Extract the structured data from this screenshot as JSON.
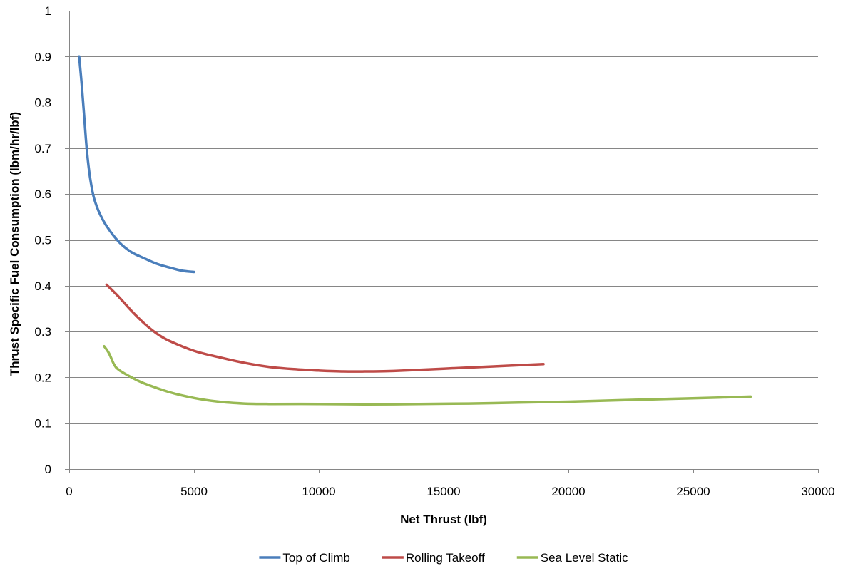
{
  "chart_data": {
    "type": "line",
    "title": "",
    "xlabel": "Net Thrust (lbf)",
    "ylabel": "Thrust Specific Fuel Consumption (lbm/hr/lbf)",
    "xlim": [
      0,
      30000
    ],
    "ylim": [
      0,
      1
    ],
    "x_ticks": [
      0,
      5000,
      10000,
      15000,
      20000,
      25000,
      30000
    ],
    "x_tick_labels": [
      "0",
      "5000",
      "10000",
      "15000",
      "20000",
      "25000",
      "30000"
    ],
    "y_ticks": [
      0,
      0.1,
      0.2,
      0.3,
      0.4,
      0.5,
      0.6,
      0.7,
      0.8,
      0.9,
      1
    ],
    "y_tick_labels": [
      "0",
      "0.1",
      "0.2",
      "0.3",
      "0.4",
      "0.5",
      "0.6",
      "0.7",
      "0.8",
      "0.9",
      "1"
    ],
    "grid": "horizontal",
    "legend_position": "bottom",
    "series": [
      {
        "name": "Top of Climb",
        "color": "#4a7ebb",
        "x": [
          400,
          500,
          600,
          700,
          800,
          900,
          1000,
          1200,
          1500,
          2000,
          2500,
          3000,
          3500,
          4000,
          4500,
          5000
        ],
        "y": [
          0.9,
          0.84,
          0.77,
          0.7,
          0.65,
          0.615,
          0.59,
          0.56,
          0.53,
          0.495,
          0.473,
          0.46,
          0.448,
          0.44,
          0.433,
          0.43
        ]
      },
      {
        "name": "Rolling Takeoff",
        "color": "#be4b48",
        "x": [
          1500,
          2000,
          2500,
          3000,
          3500,
          4000,
          5000,
          6000,
          7000,
          8000,
          9000,
          10000,
          11000,
          12000,
          13000,
          15000,
          17000,
          19000
        ],
        "y": [
          0.402,
          0.375,
          0.345,
          0.318,
          0.296,
          0.28,
          0.258,
          0.244,
          0.232,
          0.223,
          0.218,
          0.215,
          0.213,
          0.213,
          0.214,
          0.219,
          0.224,
          0.229
        ]
      },
      {
        "name": "Sea Level Static",
        "color": "#98b954",
        "x": [
          1400,
          1600,
          1800,
          2000,
          2500,
          3000,
          4000,
          5000,
          6000,
          7000,
          8000,
          10000,
          12000,
          14000,
          16000,
          18000,
          20000,
          22000,
          24000,
          26000,
          27300
        ],
        "y": [
          0.268,
          0.252,
          0.228,
          0.216,
          0.2,
          0.187,
          0.168,
          0.155,
          0.147,
          0.143,
          0.142,
          0.142,
          0.141,
          0.142,
          0.143,
          0.145,
          0.147,
          0.15,
          0.153,
          0.156,
          0.158
        ]
      }
    ]
  }
}
